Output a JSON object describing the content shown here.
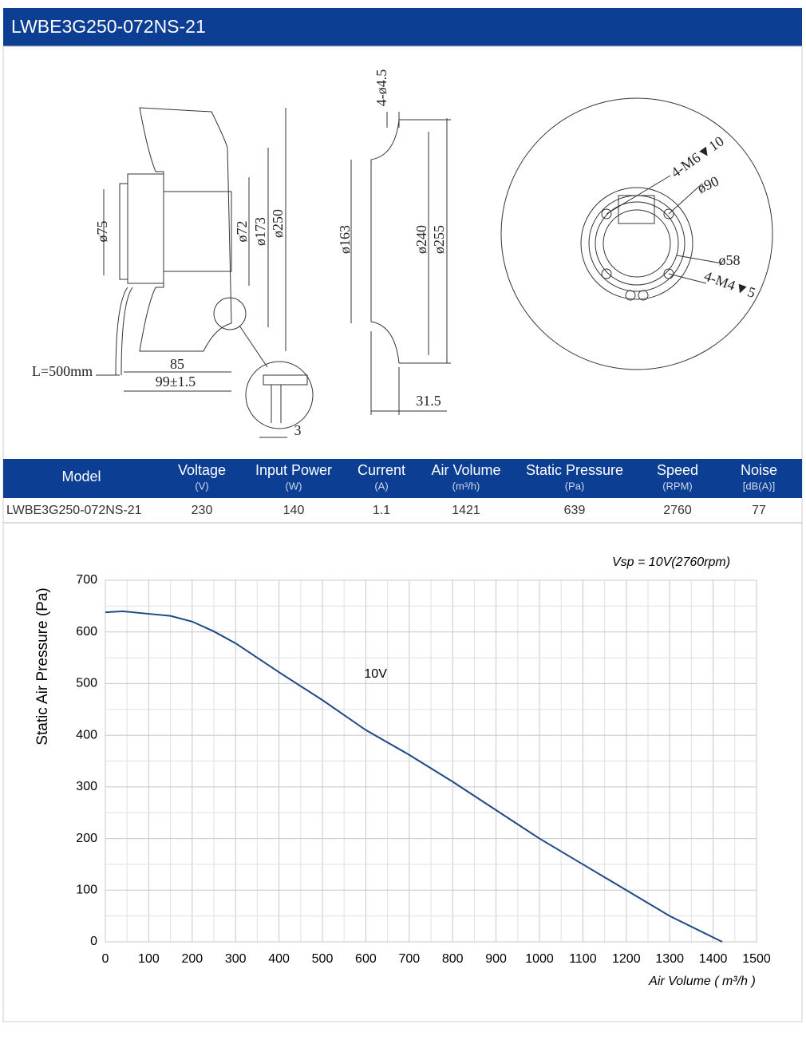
{
  "header": {
    "title": "LWBE3G250-072NS-21"
  },
  "drawing": {
    "labels": [
      "ø75",
      "ø72",
      "ø173",
      "ø250",
      "L=500mm",
      "85",
      "99±1.5",
      "3",
      "4-ø4.5",
      "ø163",
      "ø240",
      "ø255",
      "31.5",
      "4-M6▼10",
      "ø90",
      "ø58",
      "4-M4▼5"
    ]
  },
  "table": {
    "columns": [
      {
        "name": "Model"
      },
      {
        "name": "Voltage",
        "unit": "(V)"
      },
      {
        "name": "Input Power",
        "unit": "(W)"
      },
      {
        "name": "Current",
        "unit": "(A)"
      },
      {
        "name": "Air Volume",
        "unit": "(m³/h)"
      },
      {
        "name": "Static Pressure",
        "unit": "(Pa)"
      },
      {
        "name": "Speed",
        "unit": "(RPM)"
      },
      {
        "name": "Noise",
        "unit": "[dB(A)]"
      }
    ],
    "rows": [
      [
        "LWBE3G250-072NS-21",
        230,
        140,
        1.1,
        1421,
        639,
        2760,
        77
      ]
    ]
  },
  "chart_data": {
    "type": "line",
    "annotation": "Vsp = 10V(2760rpm)",
    "x_label": "Air Volume ( m³/h )",
    "y_label": "Static Air Pressure  (Pa)",
    "x": [
      0,
      40,
      100,
      150,
      200,
      250,
      300,
      400,
      500,
      600,
      700,
      800,
      900,
      1000,
      1100,
      1200,
      1300,
      1421
    ],
    "series": [
      {
        "name": "10V",
        "color": "#1c4a86",
        "values": [
          638,
          640,
          635,
          631,
          620,
          601,
          578,
          522,
          468,
          410,
          362,
          310,
          255,
          200,
          150,
          100,
          50,
          0
        ]
      }
    ],
    "xlim": [
      0,
      1500
    ],
    "ylim": [
      0,
      700
    ],
    "xticks": [
      0,
      100,
      200,
      300,
      400,
      500,
      600,
      700,
      800,
      900,
      1000,
      1100,
      1200,
      1300,
      1400,
      1500
    ],
    "yticks": [
      0,
      100,
      200,
      300,
      400,
      500,
      600,
      700
    ],
    "grid": true,
    "minor_grid": true
  }
}
